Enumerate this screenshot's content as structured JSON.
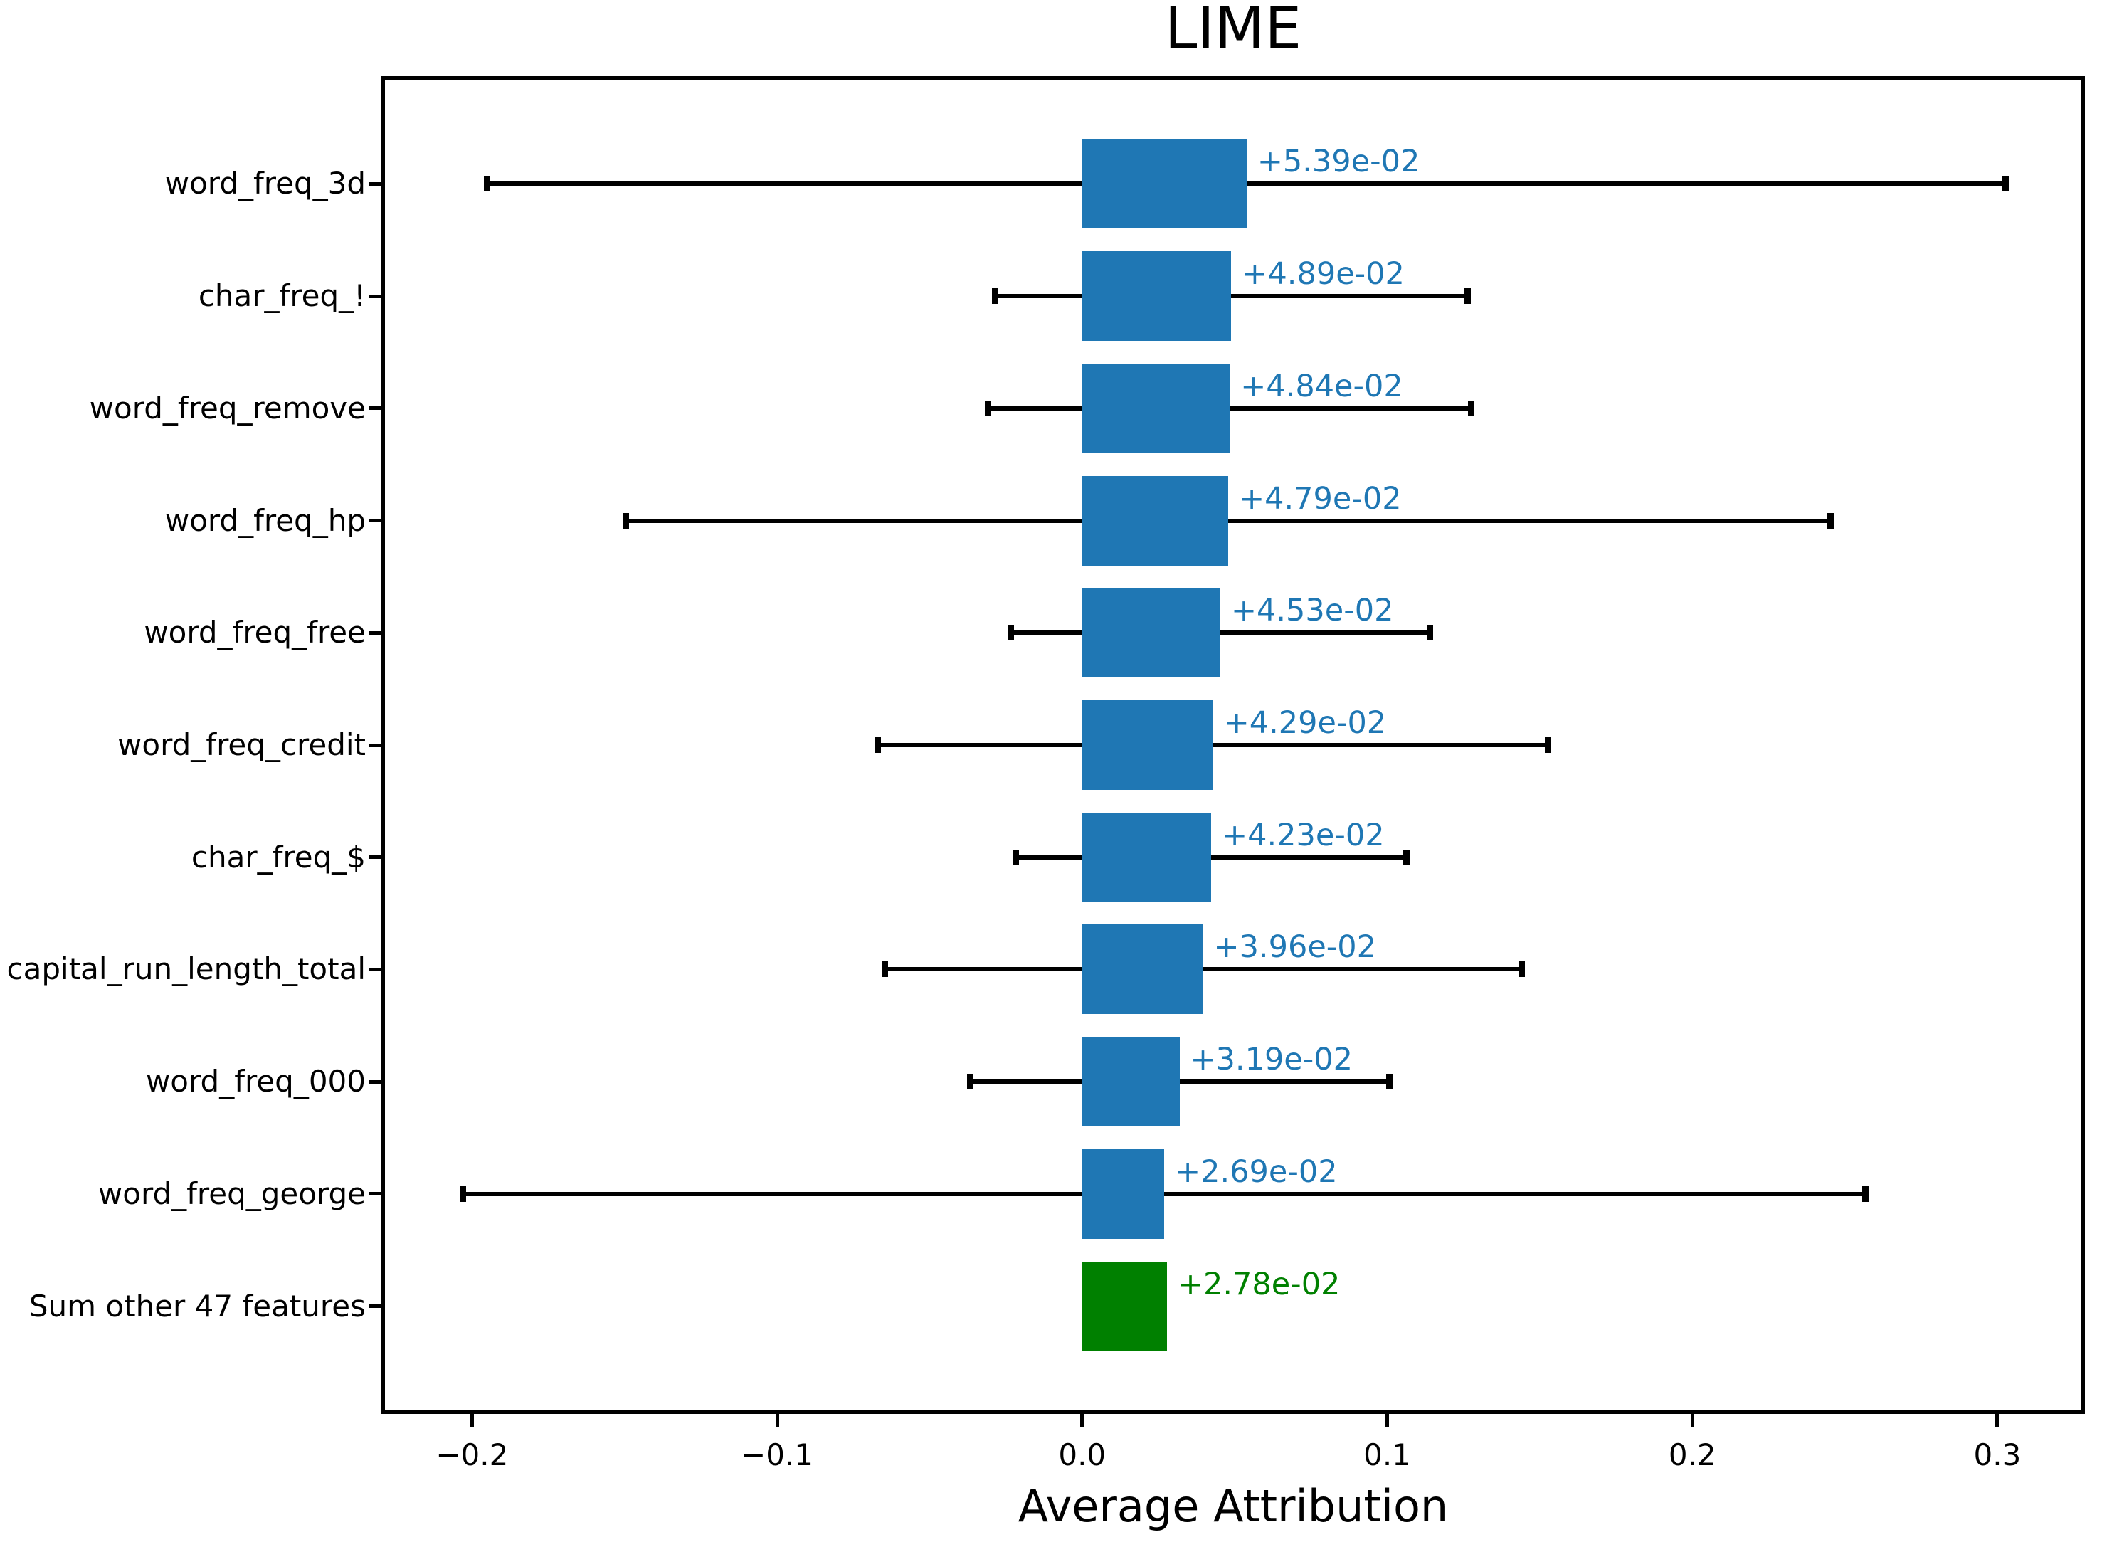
{
  "chart_data": {
    "type": "bar",
    "orientation": "horizontal",
    "title": "LIME",
    "xlabel": "Average Attribution",
    "ylabel": "",
    "xlim": [
      -0.229,
      0.328
    ],
    "grid": false,
    "legend": "none",
    "colors": {
      "bar_blue": "#1f77b4",
      "bar_green": "#008000",
      "error_bar": "#000000",
      "axis": "#000000"
    },
    "x_ticks": [
      {
        "value": -0.2,
        "label": "−0.2"
      },
      {
        "value": -0.1,
        "label": "−0.1"
      },
      {
        "value": 0.0,
        "label": "0.0"
      },
      {
        "value": 0.1,
        "label": "0.1"
      },
      {
        "value": 0.2,
        "label": "0.2"
      },
      {
        "value": 0.3,
        "label": "0.3"
      }
    ],
    "rows": [
      {
        "feature": "word_freq_3d",
        "value": 0.0539,
        "value_label": "+5.39e-02",
        "error": 0.249,
        "color": "#1f77b4"
      },
      {
        "feature": "char_freq_!",
        "value": 0.0489,
        "value_label": "+4.89e-02",
        "error": 0.0775,
        "color": "#1f77b4"
      },
      {
        "feature": "word_freq_remove",
        "value": 0.0484,
        "value_label": "+4.84e-02",
        "error": 0.0793,
        "color": "#1f77b4"
      },
      {
        "feature": "word_freq_hp",
        "value": 0.0479,
        "value_label": "+4.79e-02",
        "error": 0.1975,
        "color": "#1f77b4"
      },
      {
        "feature": "word_freq_free",
        "value": 0.0453,
        "value_label": "+4.53e-02",
        "error": 0.0688,
        "color": "#1f77b4"
      },
      {
        "feature": "word_freq_credit",
        "value": 0.0429,
        "value_label": "+4.29e-02",
        "error": 0.11,
        "color": "#1f77b4"
      },
      {
        "feature": "char_freq_$",
        "value": 0.0423,
        "value_label": "+4.23e-02",
        "error": 0.0641,
        "color": "#1f77b4"
      },
      {
        "feature": "capital_run_length_total",
        "value": 0.0396,
        "value_label": "+3.96e-02",
        "error": 0.1045,
        "color": "#1f77b4"
      },
      {
        "feature": "word_freq_000",
        "value": 0.0319,
        "value_label": "+3.19e-02",
        "error": 0.0688,
        "color": "#1f77b4"
      },
      {
        "feature": "word_freq_george",
        "value": 0.0269,
        "value_label": "+2.69e-02",
        "error": 0.23,
        "color": "#1f77b4"
      },
      {
        "feature": "Sum other 47 features",
        "value": 0.0278,
        "value_label": "+2.78e-02",
        "error": null,
        "color": "#008000"
      }
    ]
  }
}
